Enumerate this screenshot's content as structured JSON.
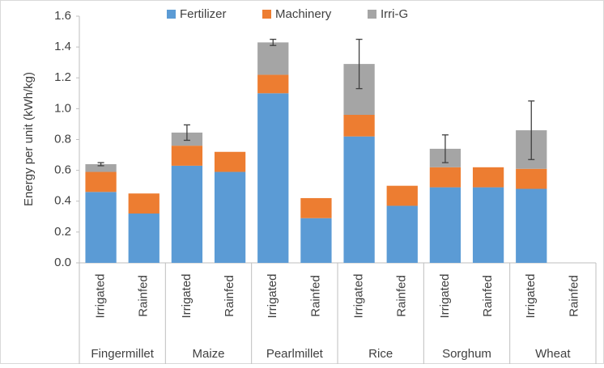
{
  "chart_data": {
    "type": "stacked_bar",
    "y_label": "Energy per unit (kWh/kg)",
    "groups": [
      "Fingermillet",
      "Maize",
      "Pearlmillet",
      "Rice",
      "Sorghum",
      "Wheat"
    ],
    "categories": [
      "Irrigated",
      "Rainfed",
      "Irrigated",
      "Rainfed",
      "Irrigated",
      "Rainfed",
      "Irrigated",
      "Rainfed",
      "Irrigated",
      "Rainfed",
      "Irrigated",
      "Rainfed"
    ],
    "series": [
      {
        "name": "Fertilizer",
        "color": "#5b9bd5",
        "values": [
          0.46,
          0.32,
          0.63,
          0.59,
          1.1,
          0.29,
          0.82,
          0.37,
          0.49,
          0.49,
          0.48,
          null
        ]
      },
      {
        "name": "Machinery",
        "color": "#ed7d31",
        "values": [
          0.13,
          0.13,
          0.13,
          0.13,
          0.12,
          0.13,
          0.14,
          0.13,
          0.13,
          0.13,
          0.13,
          null
        ]
      },
      {
        "name": "Irri-G",
        "color": "#a5a5a5",
        "values": [
          0.05,
          null,
          0.085,
          null,
          0.21,
          null,
          0.33,
          null,
          0.12,
          null,
          0.25,
          null
        ],
        "errors": [
          0.01,
          null,
          0.05,
          null,
          0.02,
          null,
          0.16,
          null,
          0.09,
          null,
          0.19,
          null
        ]
      }
    ],
    "ylim": [
      0,
      1.6
    ],
    "yticks": [
      {
        "value": 0,
        "label": "0.0"
      },
      0.2,
      0.4,
      0.6,
      0.8,
      {
        "value": 1,
        "label": "1.0"
      },
      1.2,
      1.4,
      1.6
    ],
    "legend": "top"
  }
}
